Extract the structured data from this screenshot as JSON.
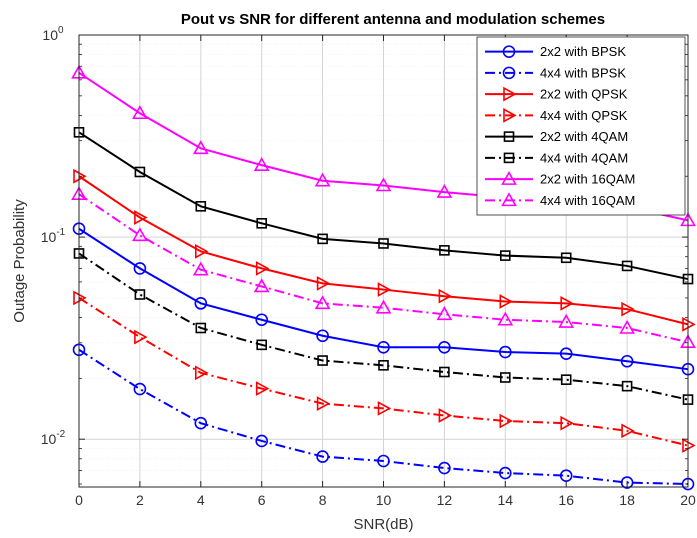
{
  "chart_data": {
    "type": "line",
    "title": "Pout vs SNR for different antenna and modulation schemes",
    "xlabel": "SNR(dB)",
    "ylabel": "Outage Probability",
    "xlim": [
      0,
      20
    ],
    "ylim": [
      0.0058,
      1
    ],
    "yscale": "log",
    "grid": true,
    "legend": "top-right",
    "x": [
      0,
      2,
      4,
      6,
      8,
      10,
      12,
      14,
      16,
      18,
      20
    ],
    "x_ticks": [
      "0",
      "2",
      "4",
      "6",
      "8",
      "10",
      "12",
      "14",
      "16",
      "18",
      "20"
    ],
    "y_ticks": [
      {
        "value": 1,
        "base": "10",
        "exp": "0"
      },
      {
        "value": 0.1,
        "base": "10",
        "exp": "-1"
      },
      {
        "value": 0.01,
        "base": "10",
        "exp": "-2"
      }
    ],
    "series": [
      {
        "name": "2x2 with BPSK",
        "color": "#0000ff",
        "marker": "circle",
        "dash": "solid",
        "values": [
          0.11,
          0.07,
          0.047,
          0.039,
          0.0325,
          0.0285,
          0.0285,
          0.027,
          0.0265,
          0.0243,
          0.0222
        ]
      },
      {
        "name": "4x4 with BPSK",
        "color": "#0000ff",
        "marker": "circle",
        "dash": "dashdot",
        "values": [
          0.0277,
          0.0177,
          0.012,
          0.0098,
          0.0082,
          0.0078,
          0.0072,
          0.0068,
          0.0066,
          0.0061,
          0.006
        ]
      },
      {
        "name": "2x2 with QPSK",
        "color": "#ff0000",
        "marker": "triangle-right",
        "dash": "solid",
        "values": [
          0.2,
          0.125,
          0.085,
          0.07,
          0.059,
          0.055,
          0.051,
          0.048,
          0.047,
          0.044,
          0.037
        ]
      },
      {
        "name": "4x4 with QPSK",
        "color": "#ff0000",
        "marker": "triangle-right",
        "dash": "dashdot",
        "values": [
          0.05,
          0.032,
          0.0213,
          0.0178,
          0.015,
          0.0142,
          0.0131,
          0.0123,
          0.012,
          0.011,
          0.0093
        ]
      },
      {
        "name": "2x2 with 4QAM",
        "color": "#000000",
        "marker": "square",
        "dash": "solid",
        "values": [
          0.33,
          0.21,
          0.142,
          0.117,
          0.098,
          0.093,
          0.086,
          0.081,
          0.079,
          0.072,
          0.062
        ]
      },
      {
        "name": "4x4 with 4QAM",
        "color": "#000000",
        "marker": "square",
        "dash": "dashdot",
        "values": [
          0.083,
          0.052,
          0.0355,
          0.0293,
          0.0245,
          0.0232,
          0.0215,
          0.0202,
          0.0197,
          0.0183,
          0.0157
        ]
      },
      {
        "name": "2x2 with 16QAM",
        "color": "#ff00ff",
        "marker": "triangle-up",
        "dash": "solid",
        "values": [
          0.65,
          0.41,
          0.275,
          0.227,
          0.19,
          0.18,
          0.167,
          0.157,
          0.153,
          0.141,
          0.121
        ]
      },
      {
        "name": "4x4 with 16QAM",
        "color": "#ff00ff",
        "marker": "triangle-up",
        "dash": "dashdot",
        "values": [
          0.163,
          0.102,
          0.069,
          0.057,
          0.047,
          0.0447,
          0.0415,
          0.039,
          0.038,
          0.0355,
          0.0302
        ]
      }
    ]
  }
}
